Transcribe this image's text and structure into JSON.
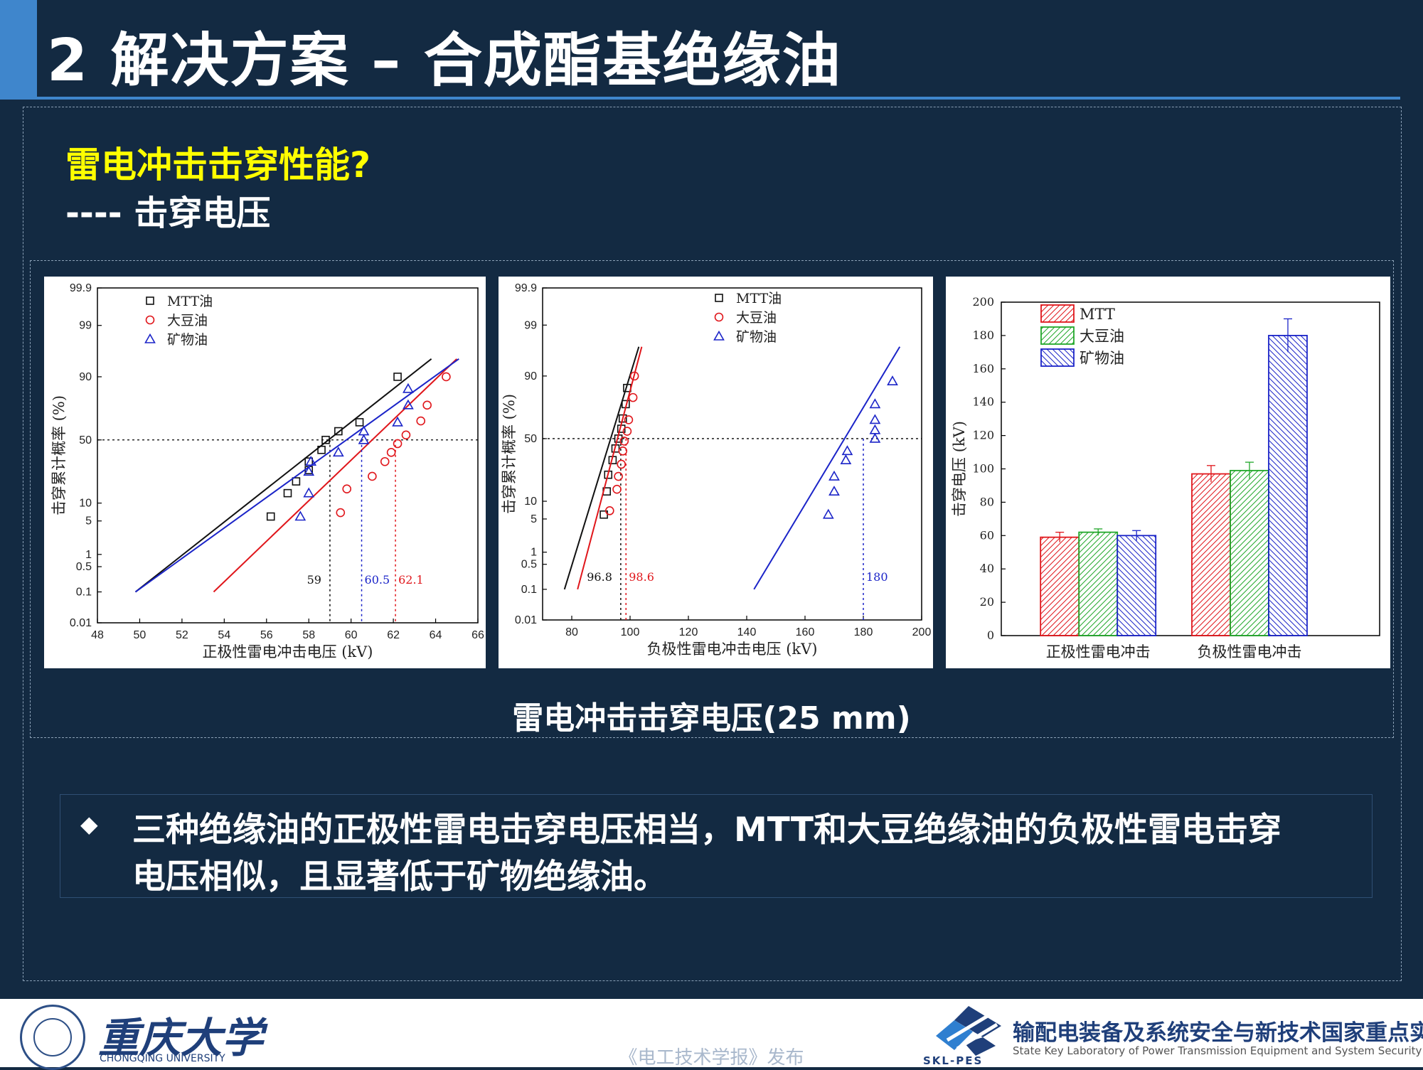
{
  "slide": {
    "title": "2 解决方案 – 合成酯基绝缘油",
    "heading": "雷电冲击击穿性能?",
    "subheading": "---- 击穿电压",
    "caption": "雷电冲击击穿电压(25 mm)",
    "bullet": "◆",
    "note_lines": [
      "三种绝缘油的正极性雷电击穿电压相当，MTT和大豆绝缘油的负极性雷电击穿",
      "电压相似，且显著低于矿物绝缘油。"
    ]
  },
  "footer": {
    "university_cn": "重庆大学",
    "university_en": "CHONGQING UNIVERSITY",
    "publisher": "《电工技术学报》发布",
    "lab_abbr": "SKL-PES",
    "lab_cn": "输配电装备及系统安全与新技术国家重点实验室",
    "lab_en": "State Key Laboratory of Power Transmission Equipment and System Security"
  },
  "colors": {
    "mtt": "#e0161b",
    "soybean": "#21a72a",
    "mineral": "#1b24c8",
    "mtt_line": "#111111"
  },
  "chart_data": [
    {
      "type": "scatter",
      "xlabel": "正极性雷电冲击电压 (kV)",
      "ylabel": "击穿累计概率 (%)",
      "xlim": [
        48,
        66
      ],
      "x_ticks": [
        48,
        50,
        52,
        54,
        56,
        58,
        60,
        62,
        64,
        66
      ],
      "y_ticks": [
        {
          "p": 0.01,
          "label": "0.01"
        },
        {
          "p": 0.1,
          "label": "0.1"
        },
        {
          "p": 0.5,
          "label": "0.5"
        },
        {
          "p": 1,
          "label": "1"
        },
        {
          "p": 5,
          "label": "5"
        },
        {
          "p": 10,
          "label": "10"
        },
        {
          "p": 50,
          "label": "50"
        },
        {
          "p": 90,
          "label": "90"
        },
        {
          "p": 99,
          "label": "99"
        },
        {
          "p": 99.9,
          "label": "99.9"
        }
      ],
      "y_scale": "normal-probability",
      "legend_position": "top-left",
      "reference_probability": 50,
      "series": [
        {
          "name": "MTT油",
          "marker": "square",
          "color": "#111111",
          "fit": [
            [
              49.8,
              0.1
            ],
            [
              63.8,
              95
            ]
          ],
          "points": [
            [
              56.2,
              6
            ],
            [
              57.0,
              14
            ],
            [
              57.4,
              20
            ],
            [
              58.0,
              27
            ],
            [
              58.0,
              33
            ],
            [
              58.6,
              42
            ],
            [
              58.8,
              50
            ],
            [
              59.4,
              57
            ],
            [
              60.4,
              64
            ],
            [
              62.2,
              90
            ]
          ],
          "v50": 59,
          "v50_label": "59"
        },
        {
          "name": "大豆油",
          "marker": "circle",
          "color": "#e0161b",
          "fit": [
            [
              53.5,
              0.1
            ],
            [
              65.0,
              95
            ]
          ],
          "points": [
            [
              59.5,
              7
            ],
            [
              59.8,
              16
            ],
            [
              61.0,
              23
            ],
            [
              61.6,
              33
            ],
            [
              61.9,
              40
            ],
            [
              62.2,
              47
            ],
            [
              62.6,
              54
            ],
            [
              63.3,
              65
            ],
            [
              63.6,
              76
            ],
            [
              64.5,
              90
            ]
          ],
          "v50": 62.1,
          "v50_label": "62.1"
        },
        {
          "name": "矿物油",
          "marker": "triangle",
          "color": "#1b24c8",
          "fit": [
            [
              49.8,
              0.1
            ],
            [
              65.1,
              95
            ]
          ],
          "points": [
            [
              57.6,
              6
            ],
            [
              58.0,
              14
            ],
            [
              58.0,
              26
            ],
            [
              58.1,
              33
            ],
            [
              59.4,
              40
            ],
            [
              60.6,
              50
            ],
            [
              60.6,
              57
            ],
            [
              62.2,
              64
            ],
            [
              62.7,
              76
            ],
            [
              62.7,
              85
            ]
          ],
          "v50": 60.5,
          "v50_label": "60.5"
        }
      ]
    },
    {
      "type": "scatter",
      "xlabel": "负极性雷电冲击电压 (kV)",
      "ylabel": "击穿累计概率 (%)",
      "xlim": [
        70,
        200
      ],
      "x_ticks": [
        80,
        100,
        120,
        140,
        160,
        180,
        200
      ],
      "y_ticks": [
        {
          "p": 0.01,
          "label": "0.01"
        },
        {
          "p": 0.1,
          "label": "0.1"
        },
        {
          "p": 0.5,
          "label": "0.5"
        },
        {
          "p": 1,
          "label": "1"
        },
        {
          "p": 5,
          "label": "5"
        },
        {
          "p": 10,
          "label": "10"
        },
        {
          "p": 50,
          "label": "50"
        },
        {
          "p": 90,
          "label": "90"
        },
        {
          "p": 99,
          "label": "99"
        },
        {
          "p": 99.9,
          "label": "99.9"
        }
      ],
      "y_scale": "normal-probability",
      "legend_position": "top-right",
      "reference_probability": 50,
      "series": [
        {
          "name": "MTT油",
          "marker": "square",
          "color": "#111111",
          "fit": [
            [
              77.5,
              0.1
            ],
            [
              103,
              97
            ]
          ],
          "points": [
            [
              91,
              6
            ],
            [
              92,
              14
            ],
            [
              92.5,
              23
            ],
            [
              94,
              33
            ],
            [
              95,
              42
            ],
            [
              96,
              50
            ],
            [
              97,
              58
            ],
            [
              97.5,
              66
            ],
            [
              98.5,
              76
            ],
            [
              99,
              85
            ]
          ],
          "v50": 96.8,
          "v50_label": "96.8"
        },
        {
          "name": "大豆油",
          "marker": "circle",
          "color": "#e0161b",
          "fit": [
            [
              82,
              0.1
            ],
            [
              104,
              97
            ]
          ],
          "points": [
            [
              93,
              7
            ],
            [
              95.5,
              15
            ],
            [
              96,
              22
            ],
            [
              97,
              30
            ],
            [
              97.5,
              40
            ],
            [
              98,
              48
            ],
            [
              99,
              56
            ],
            [
              99.5,
              65
            ],
            [
              101,
              80
            ],
            [
              101.5,
              90
            ]
          ],
          "v50": 98.6,
          "v50_label": "98.6"
        },
        {
          "name": "矿物油",
          "marker": "triangle",
          "color": "#1b24c8",
          "fit": [
            [
              142.5,
              0.1
            ],
            [
              192.5,
              97
            ]
          ],
          "points": [
            [
              168,
              6
            ],
            [
              170,
              14
            ],
            [
              170,
              22
            ],
            [
              174,
              33
            ],
            [
              174.5,
              40
            ],
            [
              184,
              50
            ],
            [
              184,
              57
            ],
            [
              184,
              65
            ],
            [
              184,
              76
            ],
            [
              190,
              88
            ]
          ],
          "v50": 180,
          "v50_label": "180"
        }
      ]
    },
    {
      "type": "bar",
      "ylabel": "击穿电压 (kV)",
      "categories": [
        "正极性雷电冲击",
        "负极性雷电冲击"
      ],
      "ylim": [
        0,
        200
      ],
      "y_ticks": [
        0,
        20,
        40,
        60,
        80,
        100,
        120,
        140,
        160,
        180,
        200
      ],
      "legend_position": "top-left",
      "series": [
        {
          "name": "MTT",
          "color": "#e0161b",
          "values": [
            59,
            97
          ],
          "errors": [
            3,
            5
          ]
        },
        {
          "name": "大豆油",
          "color": "#21a72a",
          "values": [
            62,
            99
          ],
          "errors": [
            2,
            5
          ]
        },
        {
          "name": "矿物油",
          "color": "#1b24c8",
          "values": [
            60,
            180
          ],
          "errors": [
            3,
            10
          ]
        }
      ]
    }
  ]
}
